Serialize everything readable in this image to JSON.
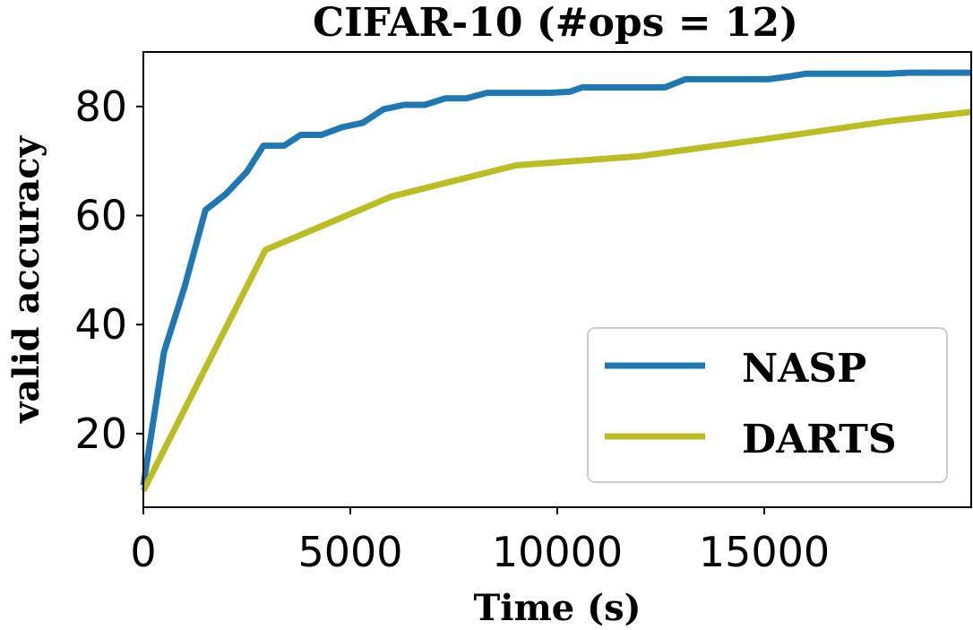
{
  "chart_data": {
    "type": "line",
    "title": "CIFAR-10 (#ops = 12)",
    "xlabel": "Time (s)",
    "ylabel": "valid accuracy",
    "xlim": [
      0,
      20000
    ],
    "ylim": [
      6.5,
      90
    ],
    "xticks": [
      0,
      5000,
      10000,
      15000
    ],
    "yticks": [
      20,
      40,
      60,
      80
    ],
    "grid": false,
    "legend_position": "lower-right",
    "series": [
      {
        "name": "NASP",
        "color": "#1f77b4",
        "x": [
          0,
          500,
          1000,
          1500,
          2000,
          2500,
          2900,
          3400,
          3800,
          4300,
          4800,
          5300,
          5800,
          6300,
          6800,
          7300,
          7800,
          8300,
          8800,
          9300,
          9800,
          10300,
          10600,
          11100,
          11600,
          12100,
          12600,
          13100,
          13600,
          14100,
          14600,
          15100,
          15600,
          16000,
          16500,
          17000,
          17500,
          18000,
          18500,
          19000,
          19500,
          20000
        ],
        "y": [
          10.5,
          35,
          47,
          61,
          64,
          68,
          72.8,
          72.8,
          74.8,
          74.8,
          76.2,
          77,
          79.5,
          80.3,
          80.3,
          81.5,
          81.5,
          82.5,
          82.5,
          82.5,
          82.5,
          82.7,
          83.5,
          83.5,
          83.5,
          83.5,
          83.5,
          85,
          85,
          85,
          85,
          85,
          85.5,
          86,
          86,
          86,
          86,
          86,
          86.2,
          86.2,
          86.2,
          86.2
        ]
      },
      {
        "name": "DARTS",
        "color": "#bcbd22",
        "x": [
          0,
          2950,
          6000,
          9000,
          12000,
          15000,
          18000,
          20000
        ],
        "y": [
          9.5,
          53.7,
          63.5,
          69.2,
          70.9,
          74,
          77.3,
          79
        ]
      }
    ]
  }
}
